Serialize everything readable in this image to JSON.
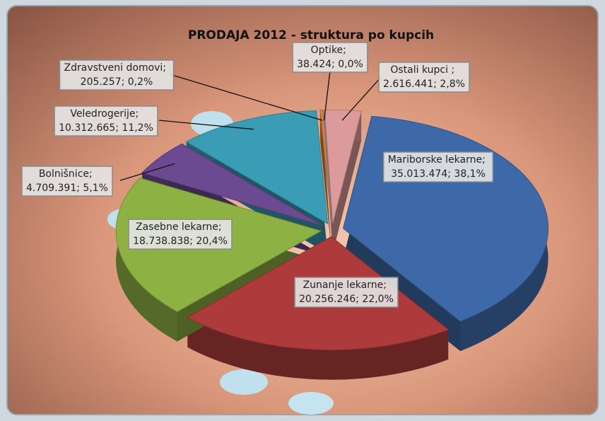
{
  "chart_data": {
    "type": "pie",
    "title": "PRODAJA 2012 - struktura po kupcih",
    "separator": "; ",
    "categories": [
      "Mariborske lekarne",
      "Zunanje lekarne",
      "Zasebne lekarne",
      "Bolnišnice",
      "Veledrogerije",
      "Zdravstveni domovi",
      "Optike",
      "Ostali kupci "
    ],
    "values": [
      35013474,
      20256246,
      18738838,
      4709391,
      10312665,
      205257,
      38424,
      2616441
    ],
    "value_labels": [
      "35.013.474",
      "20.256.246",
      "18.738.838",
      "4.709.391",
      "10.312.665",
      "205.257",
      "38.424",
      "2.616.441"
    ],
    "percents": [
      38.1,
      22.0,
      20.4,
      5.1,
      11.2,
      0.2,
      0.0,
      2.8
    ],
    "percent_labels": [
      "38,1%",
      "22,0%",
      "20,4%",
      "5,1%",
      "11,2%",
      "0,2%",
      "0,0%",
      "2,8%"
    ],
    "colors": [
      "#3d69a8",
      "#ad3b3b",
      "#8db142",
      "#6b4a91",
      "#3a9db5",
      "#d9812e",
      "#9a9ac0",
      "#dd9a9a"
    ]
  }
}
